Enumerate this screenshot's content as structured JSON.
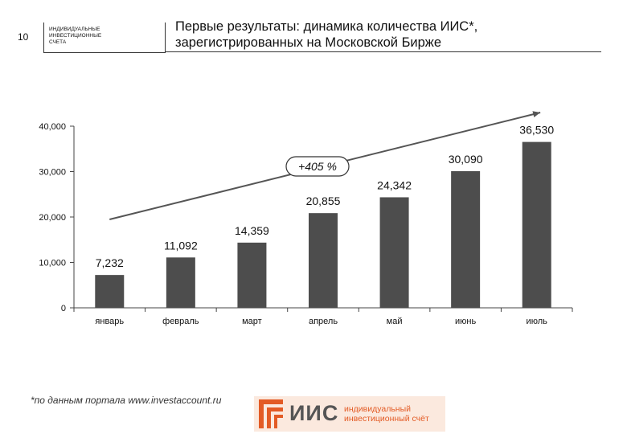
{
  "header": {
    "slide_number": "10",
    "tag_lines": [
      "Индивидуальные",
      "инвестиционные",
      "счета"
    ],
    "title_line1": "Первые результаты: динамика количества ИИС*,",
    "title_line2": "зарегистрированных на Московской Бирже"
  },
  "chart_data": {
    "type": "bar",
    "categories": [
      "январь",
      "февраль",
      "март",
      "апрель",
      "май",
      "июнь",
      "июль"
    ],
    "values": [
      7232,
      11092,
      14359,
      20855,
      24342,
      30090,
      36530
    ],
    "value_labels": [
      "7,232",
      "11,092",
      "14,359",
      "20,855",
      "24,342",
      "30,090",
      "36,530"
    ],
    "ylim": [
      0,
      40000
    ],
    "yticks": [
      0,
      10000,
      20000,
      30000,
      40000
    ],
    "ytick_labels": [
      "0",
      "10,000",
      "20,000",
      "30,000",
      "40,000"
    ],
    "bar_color": "#4d4d4d",
    "annotation": "+405 %",
    "trend_arrow": true,
    "grid": false,
    "legend": "none"
  },
  "footer": {
    "note": "*по данным портала www.investaccount.ru",
    "logo_text": "ИИС",
    "logo_sub_line1": "индивидуальный",
    "logo_sub_line2": "инвестиционный счёт",
    "logo_color": "#e35b25"
  }
}
